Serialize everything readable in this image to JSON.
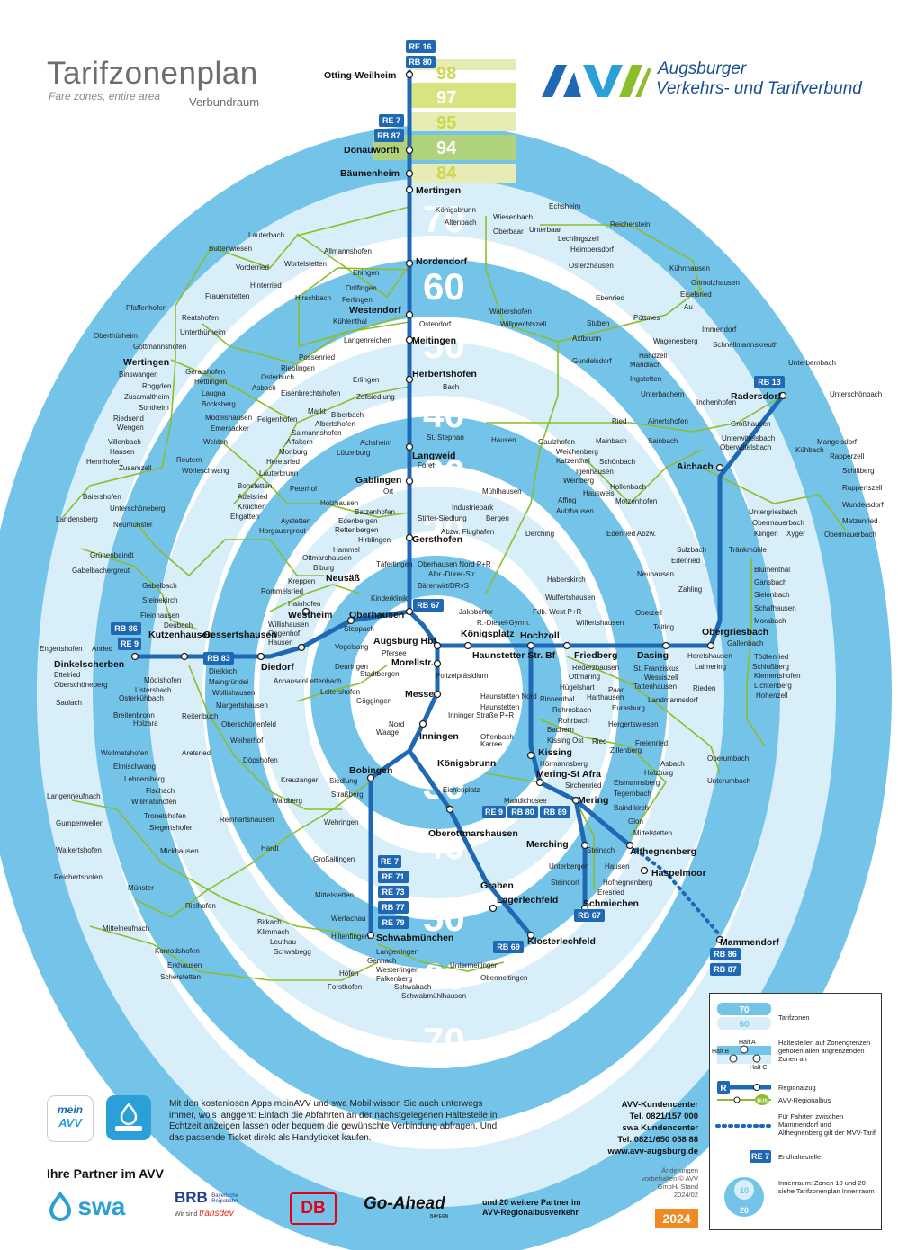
{
  "header": {
    "title": "Tarifzonenplan",
    "subtitle_en": "Fare zones, entire area",
    "subtitle_de": "Verbundraum",
    "brand_line1": "Augsburger",
    "brand_line2": "Verkehrs- und Tarifverbund"
  },
  "colors": {
    "zone_blue": "#74c4ea",
    "zone_light": "#d8eef9",
    "rail": "#1f68b3",
    "bus": "#8cbd2a",
    "north_zone": "#c9d94a"
  },
  "zones": {
    "ring_labels": [
      "70",
      "60",
      "50",
      "40",
      "30",
      "20",
      "10",
      "20",
      "30",
      "40",
      "50",
      "60",
      "70"
    ],
    "north_labels": [
      "98",
      "97",
      "95",
      "94",
      "84"
    ]
  },
  "stations": {
    "otting": "Otting-Weilheim",
    "donauwoerth": "Donauwörth",
    "baeumenheim": "Bäumenheim",
    "mertingen": "Mertingen",
    "nordendorf": "Nordendorf",
    "westendorf": "Westendorf",
    "meitingen": "Meitingen",
    "herbertshofen": "Herbertshofen",
    "langweid": "Langweid",
    "gablingen": "Gablingen",
    "gersthofen": "Gersthofen",
    "neusaess": "Neusäß",
    "westheim": "Westheim",
    "oberhausen": "Oberhausen",
    "gessertshausen": "Gessertshausen",
    "kutzenhausen": "Kutzenhausen",
    "dinkelscherben": "Dinkelscherben",
    "diedorf": "Diedorf",
    "augsburg_hbf": "Augsburg Hbf",
    "koenigsplatz": "Königsplatz",
    "haunstetter": "Haunstetter Str. Bf",
    "hochzoll": "Hochzoll",
    "friedberg": "Friedberg",
    "dasing": "Dasing",
    "obergriesbach": "Obergriesbach",
    "aichach": "Aichach",
    "radersdorf": "Radersdorf",
    "morellstr": "Morellstr.",
    "messe": "Messe",
    "inningen": "Inningen",
    "koenigsbrunn": "Königsbrunn",
    "bobingen": "Bobingen",
    "kissing": "Kissing",
    "mering_st_afra": "Mering-St Afra",
    "mering": "Mering",
    "merching": "Merching",
    "althegnenberg": "Althegnenberg",
    "haspelmoor": "Haspelmoor",
    "mammendorf": "Mammendorf",
    "oberottmarshausen": "Oberottmarshausen",
    "graben": "Graben",
    "lagerlechfeld": "Lagerlechfeld",
    "klosterlechfeld": "Klosterlechfeld",
    "schwabmuenchen": "Schwabmünchen",
    "schmiechen": "Schmiechen",
    "wertingen": "Wertingen"
  },
  "places": [
    "Lauterbach",
    "Buttenwiesen",
    "Vorderried",
    "Allmannshofen",
    "Wortelstetten",
    "Ehingen",
    "Hinterried",
    "Ortlfingen",
    "Fertingen",
    "Frauenstetten",
    "Pfaffenhofen",
    "Reatshofen",
    "Unterthürheim",
    "Oberthürheim",
    "Gottmannshofen",
    "Binswangen",
    "Roggden",
    "Zusamaltheim",
    "Sontheim",
    "Riedsend",
    "Wengen",
    "Villenbach",
    "Hausen",
    "Hennhofen",
    "Zusamzell",
    "Baiershofen",
    "Unterschöneberg",
    "Landensberg",
    "Neumünster",
    "Grünenbaindt",
    "Gabelbachergreut",
    "Gabelbach",
    "Steinekirch",
    "Fleinhausen",
    "Engertshofen",
    "Anried",
    "Ettelried",
    "Oberschöneberg",
    "Saulach",
    "Mödishofen",
    "Ustersbach",
    "Osterkühbach",
    "Breitenbronn",
    "Holzara",
    "Wollmetshofen",
    "Elmischwang",
    "Lehnersberg",
    "Fischach",
    "Langenneufnach",
    "Willmatshofen",
    "Tronetshofen",
    "Siegertshofen",
    "Gumpenweiler",
    "Walkertshofen",
    "Mickhausen",
    "Reichertshofen",
    "Münster",
    "Rielhofen",
    "Mittelneufnach",
    "Konradshofen",
    "Erkhausen",
    "Scherstetten",
    "Hardt",
    "Großaitingen",
    "Mittelstetten",
    "Wertachau",
    "Birkach",
    "Klimmach",
    "Leuthau",
    "Schwabegg",
    "Hiltenfingen",
    "Langerringen",
    "Gennach",
    "Westerringen",
    "Falkenberg",
    "Höfen",
    "Forsthofen",
    "Schwabach",
    "Schwabmühlhausen",
    "Untermeitingen",
    "Obermeitingen",
    "Königsbrunn",
    "Altenbach",
    "Wiesenbach",
    "Echsheim",
    "Reicherstein",
    "Oberbaar",
    "Unterbaar",
    "Lechlingszell",
    "Heimpersdorf",
    "Osterzhausen",
    "Kühnhausen",
    "Grimolzhausen",
    "Eiselsried",
    "Au",
    "Ebenried",
    "Pöttmes",
    "Stuben",
    "Immendorf",
    "Schnellmannskreuth",
    "Axtbrunn",
    "Wagenesberg",
    "Gundelsdorf",
    "Handzell",
    "Mandlach",
    "Unterbernbach",
    "Ingstetten",
    "Obermauerbach",
    "Unterbachern",
    "Ried",
    "Ainertshofen",
    "Inchenhofen",
    "Großhausen",
    "Unterwittelsbach",
    "Oberwittelsbach",
    "Untergriesbach",
    "Klingen",
    "Xyger",
    "Obermauerbach",
    "Metzenried",
    "Wundersdorf",
    "Ruppertszell",
    "Schiltberg",
    "Rapperzell",
    "Kühbach",
    "Mangelsdorf",
    "Unterschönbach",
    "Sulzbach",
    "Edenried",
    "Neuhausen",
    "Zahling",
    "Taiting",
    "Gallenbach",
    "Blumenthal",
    "Gansbach",
    "Sielenbach",
    "Schafhausen",
    "Morabach",
    "Tödtenried",
    "Schloßberg",
    "Kiemertshofen",
    "Hohenzell",
    "Lichtenberg",
    "Rieden",
    "Laimering",
    "Heretshausen",
    "St. Franziskus",
    "Wessiszell",
    "Tattenhausen",
    "Landmannsdorf",
    "Paar",
    "Harthausen",
    "Eurasburg",
    "Freienried",
    "Hergertswiesen",
    "Zillenberg",
    "Rohrbach",
    "Rederzhausen",
    "Ottmaring",
    "Hügelshart",
    "Rinnenthal",
    "Rehrosbach",
    "Bachern",
    "Ried",
    "Kissing Ost",
    "Hörmannsberg",
    "Asbach",
    "Holzburg",
    "Eismannsberg",
    "Tegernbach",
    "Baindlkirch",
    "Glon",
    "Mittelstetten",
    "Steinach",
    "Hausen",
    "Unterbergen",
    "Hofhegnenberg",
    "Eresried",
    "Steindorf",
    "Oberumbach",
    "Unterumbach",
    "Mandichosee",
    "Sirchenried",
    "Haunstetten Nord",
    "Haunstetten",
    "Inninger Straße P+R",
    "Offenbach",
    "Karree",
    "Nord",
    "Waage",
    "Göggingen",
    "Leitershofen",
    "Stadtbergen",
    "Deuringen",
    "Vogelsang",
    "Lettenbach",
    "Steppach",
    "Pfersee",
    "Polizeipräsidium",
    "Willishausen",
    "Oggenhof",
    "Hausen",
    "Anhausen",
    "Dietkirch",
    "Maingründel",
    "Wollishausen",
    "Margertshausen",
    "Reitenbuch",
    "Oberschönenfeld",
    "Weiherhof",
    "Aretsried",
    "Döpshofen",
    "Kreuzanger",
    "Waldberg",
    "Reinhartshausen",
    "Siedlung",
    "Straßberg",
    "Wehringen",
    "Deubach",
    "Rommelsried",
    "Hainhofen",
    "Kreppen",
    "Biburg",
    "Ottmarshausen",
    "Hammel",
    "Täfertingen",
    "Hirblingen",
    "Rettenbergen",
    "Edenbergen",
    "Aystetten",
    "Horgauergreut",
    "Batzenhofen",
    "Holzhausen",
    "Peterhof",
    "Bonstetten",
    "Adelsried",
    "Kruichen",
    "Ehgatten",
    "Welden",
    "Reutern",
    "Wörleschwang",
    "Lauterbrunn",
    "Heretsried",
    "Monburg",
    "Affaltern",
    "Emersacker",
    "Modelshausen",
    "Laugna",
    "Bocksberg",
    "Hettlingen",
    "Geratshofen",
    "Osterbuch",
    "Asbach",
    "Eisenbrechtshofen",
    "Feigenhofen",
    "Markt",
    "Biberbach",
    "Albertshofen",
    "Salmannshofen",
    "Erlingen",
    "Zollsiedlung",
    "Achsheim",
    "Lützelburg",
    "Rieblingen",
    "Possenried",
    "Langenreichen",
    "Kühlenthal",
    "Hirschbach",
    "Ostendorf",
    "Waltershofen",
    "Willprechtszell",
    "Bach",
    "St. Stephan",
    "Foret",
    "Ort",
    "Stifter-Siedlung",
    "Abzw. Flughafen",
    "Bergen",
    "Industriepark",
    "Mühlhausen",
    "Derching",
    "Affing",
    "Aulzhausen",
    "Hausen",
    "Gaulzhofen",
    "Weichenberg",
    "Katzenthal",
    "Mainbach",
    "Sainbach",
    "Schönbach",
    "Igenhausen",
    "Weinberg",
    "Hollenbach",
    "Hausweis",
    "Motzenhofen",
    "Edenried Abzw.",
    "Tränkmühle",
    "Haberskirch",
    "Wulfertshausen",
    "Wiffertshausen",
    "Oberzell",
    "Fdb. West P+R",
    "R.-Diesel-Gymn.",
    "Jakobertor",
    "Oberhausen Nord P+R",
    "Albr.-Dürer-Str.",
    "Bärenwirt/DRvS",
    "Kinderklinik",
    "Eichenplatz"
  ],
  "lines": {
    "re16": "RE 16",
    "rb80": "RB 80",
    "re7": "RE 7",
    "rb87": "RB 87",
    "rb13": "RB 13",
    "rb86": "RB 86",
    "re9": "RE 9",
    "rb83": "RB 83",
    "rb67": "RB 67",
    "re71": "RE 71",
    "re73": "RE 73",
    "rb77": "RB 77",
    "re79": "RE 79",
    "rb69": "RB 69",
    "rb67b": "RB 67",
    "rb86b": "RB 86",
    "rb87b": "RB 87",
    "re9b": "RE 9",
    "rb80b": "RB 80",
    "rb89": "RB 89",
    "re7b": "RE 7"
  },
  "legend": {
    "zone_70": "70",
    "zone_60": "60",
    "tarifzonen": "Tarifzonen",
    "halt_a": "Halt A",
    "halt_b": "Halt B",
    "halt_c": "Halt C",
    "border_text": "Haltestellen auf Zonengrenzen gehören allen angrenzenden Zonen an",
    "regionalzug": "Regionalzug",
    "bus_label": "BUS",
    "regionalbus": "AVV-Regionalbus",
    "dotted_text": "Für Fahrten zwischen Mammendorf und Althegnenberg gilt der MVV-Tarif",
    "endhalt_badge": "RE 7",
    "endhalt": "Endhaltestelle",
    "innenraum": "Innenraum: Zonen 10 und 20 siehe Tarifzonenplan Innenraum",
    "inner_10": "10",
    "inner_20": "20",
    "r_letter": "R"
  },
  "footer": {
    "info": "Mit den kostenlosen Apps meinAVV und swa Mobil wissen Sie auch unterwegs immer, wo’s langgeht: Einfach die Abfahrten an der nächstgelegenen Haltestelle in Echtzeit anzeigen lassen oder bequem die gewünschte Verbindung abfragen. Und das passende Ticket direkt als Handyticket kaufen.",
    "app1_top": "mein",
    "app1_bottom": "AVV",
    "contact1": "AVV-Kundencenter",
    "tel1": "Tel. 0821/157 000",
    "contact2": "swa Kundencenter",
    "tel2": "Tel. 0821/650 058 88",
    "web": "www.avv-augsburg.de",
    "changes": "Änderungen vorbehalten © AVV GmbH/ Stand 2024/02",
    "year": "2024",
    "partners_heading": "Ihre Partner im AVV",
    "swa": "swa",
    "brb": "BRB",
    "brb_sub": "Bayerische Regiobahn",
    "brb_sub2": "Wir sind",
    "transdev": "transdev",
    "db": "DB",
    "goahead": "Go-Ahead",
    "goahead_sub": "BAYERN",
    "more": "und 20 weitere Partner im AVV-Regionalbusverkehr"
  }
}
